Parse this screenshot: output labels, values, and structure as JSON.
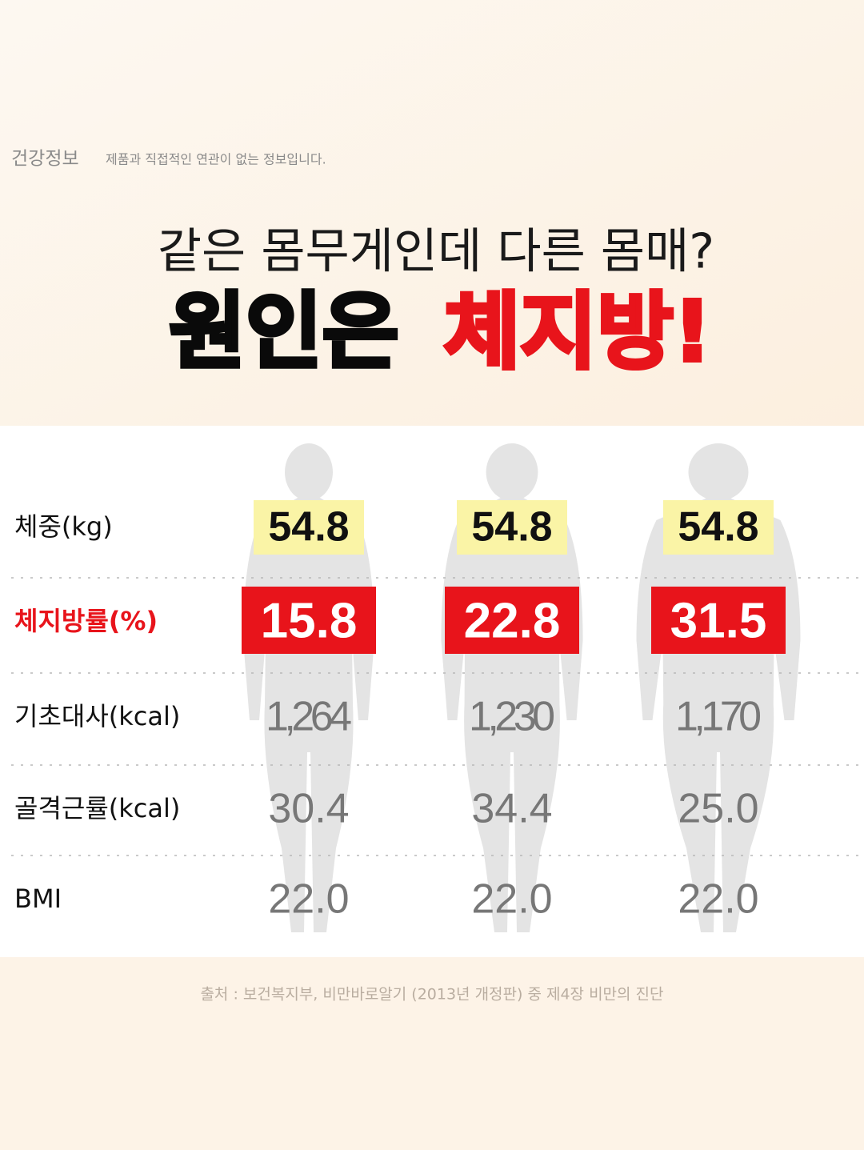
{
  "header": {
    "tag": "건강정보",
    "note": "제품과 직접적인 연관이 없는 정보입니다."
  },
  "title": {
    "line1": "같은 몸무게인데 다른 몸매?",
    "line2_black": "원인은",
    "line2_red": "체지방!"
  },
  "table": {
    "rows": [
      [
        "체중(kg)",
        "54.8",
        "54.8",
        "54.8"
      ],
      [
        "체지방률(%)",
        "15.8",
        "22.8",
        "31.5"
      ],
      [
        "기초대사(kcal)",
        "1,264",
        "1,230",
        "1,170"
      ],
      [
        "골격근률(kcal)",
        "30.4",
        "34.4",
        "25.0"
      ],
      [
        "BMI",
        "22.0",
        "22.0",
        "22.0"
      ]
    ]
  },
  "source": "출처 : 보건복지부, 비만바로알기 (2013년 개정판) 중 제4장 비만의 진단"
}
